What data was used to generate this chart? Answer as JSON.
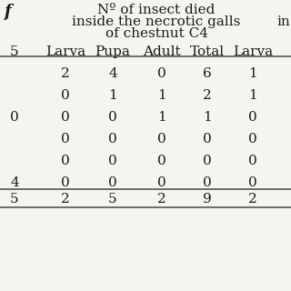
{
  "header_line1": "Nº of insect died",
  "header_line2": "inside the necrotic galls",
  "header_line3": "of chestnut C4",
  "header_right_partial": "in",
  "col_left_partial": "f",
  "col_labels": [
    "5",
    "Larva",
    "Pupa",
    "Adult",
    "Total",
    "Larva"
  ],
  "rows": [
    [
      "",
      "2",
      "4",
      "0",
      "6",
      "1"
    ],
    [
      "",
      "0",
      "1",
      "1",
      "2",
      "1"
    ],
    [
      "0",
      "0",
      "0",
      "1",
      "1",
      "0"
    ],
    [
      "",
      "0",
      "0",
      "0",
      "0",
      "0"
    ],
    [
      "",
      "0",
      "0",
      "0",
      "0",
      "0"
    ],
    [
      "4",
      "0",
      "0",
      "0",
      "0",
      "0"
    ]
  ],
  "total_row": [
    "5",
    "2",
    "5",
    "2",
    "9",
    "2"
  ],
  "bg_color": "#f5f5f0",
  "text_color": "#1a1a1a",
  "font_size": 11,
  "header_font_size": 11
}
